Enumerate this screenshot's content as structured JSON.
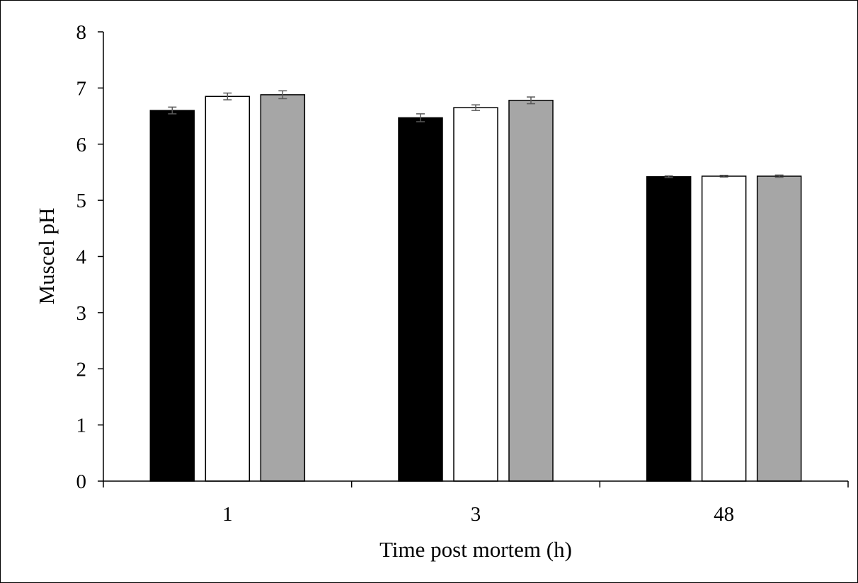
{
  "chart_data": {
    "type": "bar",
    "title": "",
    "xlabel": "Time post mortem (h)",
    "ylabel": "Muscel pH",
    "categories": [
      "1",
      "3",
      "48"
    ],
    "ylim": [
      0,
      8
    ],
    "yticks": [
      "0",
      "1",
      "2",
      "3",
      "4",
      "5",
      "6",
      "7",
      "8"
    ],
    "grid": false,
    "legend": "none",
    "series": [
      {
        "color": "#000000",
        "values": [
          6.6,
          6.47,
          5.42
        ],
        "errors": [
          0.06,
          0.07,
          0.015
        ]
      },
      {
        "color": "#ffffff",
        "values": [
          6.85,
          6.65,
          5.43
        ],
        "errors": [
          0.06,
          0.05,
          0.015
        ]
      },
      {
        "color": "#a6a6a6",
        "values": [
          6.88,
          6.78,
          5.43
        ],
        "errors": [
          0.07,
          0.06,
          0.02
        ]
      }
    ]
  }
}
